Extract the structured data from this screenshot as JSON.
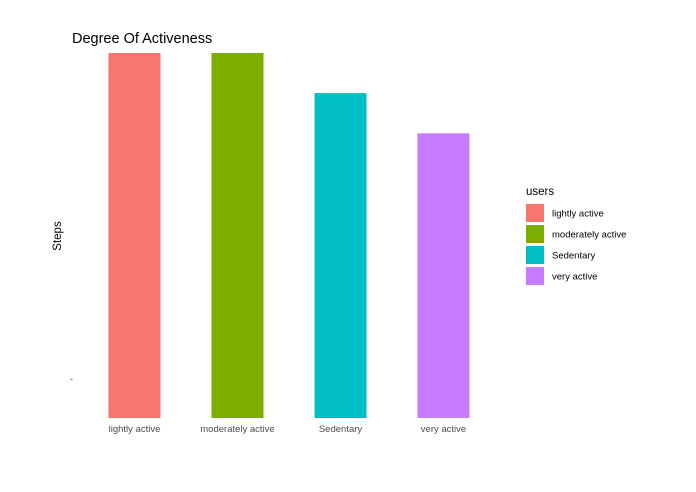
{
  "chart_data": {
    "type": "bar",
    "title": "Degree Of Activeness",
    "xlabel": "",
    "ylabel": "Steps",
    "categories": [
      "lightly active",
      "moderately active",
      "Sedentary",
      "very active"
    ],
    "values": [
      100,
      100,
      89,
      78
    ],
    "colors": [
      "#F8766D",
      "#7CAE00",
      "#00BFC4",
      "#C77CFF"
    ],
    "y_tick_labels": [
      "-"
    ],
    "ylim": [
      0,
      100
    ],
    "grid": false,
    "legend": {
      "title": "users",
      "position": "right",
      "entries": [
        "lightly active",
        "moderately active",
        "Sedentary",
        "very active"
      ]
    }
  }
}
